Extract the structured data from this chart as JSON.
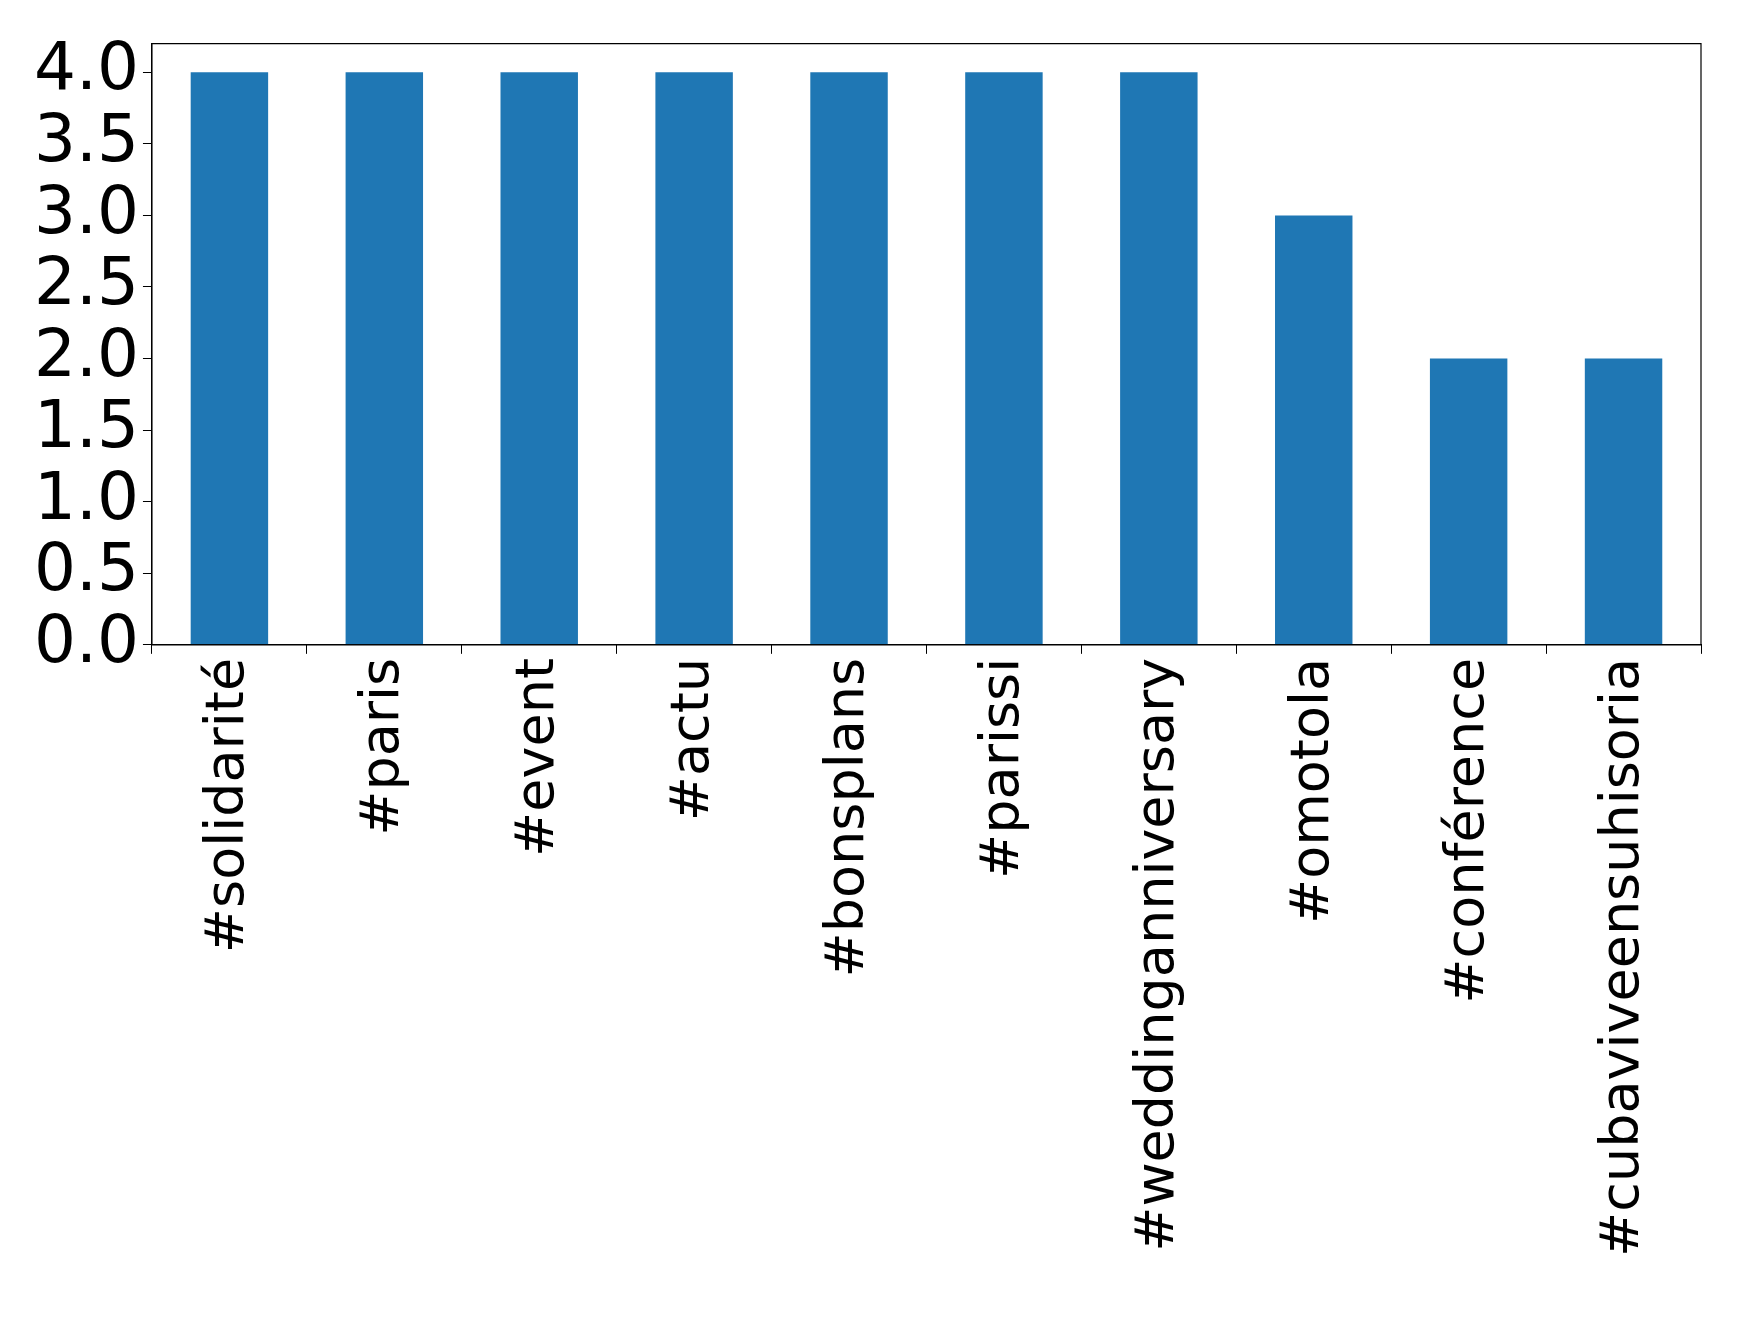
{
  "chart_data": {
    "type": "bar",
    "categories": [
      "#solidarité",
      "#paris",
      "#event",
      "#actu",
      "#bonsplans",
      "#parissi",
      "#weddinganniversary",
      "#omotola",
      "#conférence",
      "#cubaviveensuhisoria"
    ],
    "values": [
      4,
      4,
      4,
      4,
      4,
      4,
      4,
      3,
      2,
      2
    ],
    "color": "#1f77b4",
    "ylim": [
      0,
      4.2
    ],
    "yticks": [
      {
        "value": 0,
        "label": "0.0"
      },
      0.5,
      {
        "value": 1,
        "label": "1.0"
      },
      1.5,
      {
        "value": 2,
        "label": "2.0"
      },
      2.5,
      {
        "value": 3,
        "label": "3.0"
      },
      3.5,
      {
        "value": 4,
        "label": "4.0"
      }
    ],
    "grid": false,
    "legend": false
  }
}
